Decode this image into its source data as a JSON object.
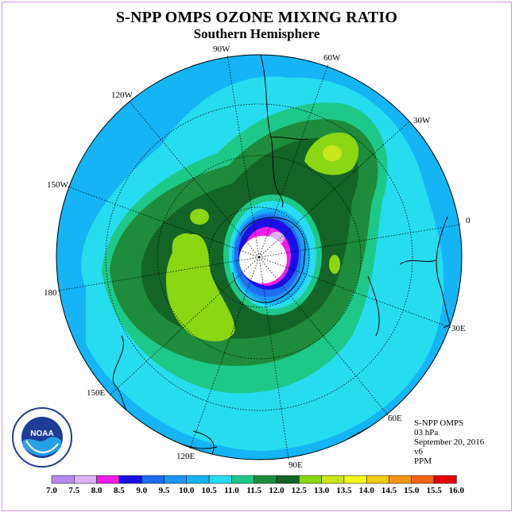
{
  "title": "S-NPP OMPS OZONE MIXING RATIO",
  "subtitle": "Southern Hemisphere",
  "longitude_labels": [
    "90W",
    "60W",
    "30W",
    "0",
    "30E",
    "60E",
    "90E",
    "120E",
    "150E",
    "180",
    "150W",
    "120W"
  ],
  "info": {
    "instrument": "S-NPP OMPS",
    "level": "03 hPa",
    "date": "September 20, 2016",
    "version": "v6",
    "units": "PPM"
  },
  "logo": {
    "text": "NOAA",
    "ring_text": "NATIONAL OCEANIC AND ATMOSPHERIC ADMINISTRATION · U.S. DEPARTMENT OF COMMERCE"
  },
  "colorbar": {
    "labels": [
      "7.0",
      "7.5",
      "8.0",
      "8.5",
      "9.0",
      "9.5",
      "10.0",
      "10.5",
      "11.0",
      "11.5",
      "12.0",
      "12.5",
      "13.0",
      "13.5",
      "14.0",
      "14.5",
      "15.0",
      "15.5",
      "16.0"
    ],
    "colors": [
      "#b889ee",
      "#dcb4f4",
      "#f21ee6",
      "#1a10e6",
      "#1e6ef0",
      "#1e96f5",
      "#14b4f5",
      "#28dcf0",
      "#1ec888",
      "#1e8c3c",
      "#146428",
      "#8cd714",
      "#c8e61e",
      "#f5f51e",
      "#f5c814",
      "#f59614",
      "#f56414",
      "#e60000",
      "#966446"
    ]
  },
  "legend_title": "",
  "map_data": {
    "projection": "south-polar-stereographic",
    "field": "ozone mixing ratio",
    "background_level": "10.0-10.5",
    "ozone_hole_min": "< 7.0",
    "max_region_levels": [
      "12.5",
      "13.0"
    ]
  }
}
